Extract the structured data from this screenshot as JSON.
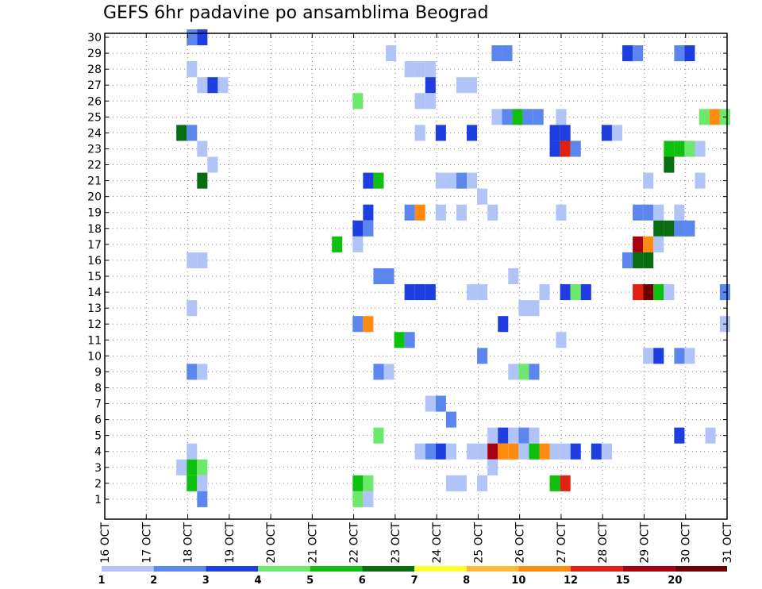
{
  "chart_data": {
    "type": "heatmap",
    "title": "GEFS 6hr padavine po ansamblima Beograd",
    "xlabel": "",
    "ylabel": "",
    "x_ticks": [
      "16 OCT",
      "17 OCT",
      "18 OCT",
      "19 OCT",
      "20 OCT",
      "21 OCT",
      "22 OCT",
      "23 OCT",
      "24 OCT",
      "25 OCT",
      "26 OCT",
      "27 OCT",
      "28 OCT",
      "29 OCT",
      "30 OCT",
      "31 OCT"
    ],
    "y_ticks": [
      "1",
      "2",
      "3",
      "4",
      "5",
      "6",
      "7",
      "8",
      "9",
      "10",
      "11",
      "12",
      "13",
      "14",
      "15",
      "16",
      "17",
      "18",
      "19",
      "20",
      "21",
      "22",
      "23",
      "24",
      "25",
      "26",
      "27",
      "28",
      "29",
      "30"
    ],
    "xlim": [
      0,
      15
    ],
    "ylim": [
      0,
      30
    ],
    "grid": true,
    "legend": {
      "placement": "bottom",
      "labels": [
        "1",
        "2",
        "3",
        "4",
        "5",
        "6",
        "7",
        "8",
        "10",
        "12",
        "15",
        "20"
      ],
      "colors": [
        "#b0c4f8",
        "#5b86ee",
        "#1e3ee0",
        "#6ce86c",
        "#10c010",
        "#086c10",
        "#ffff30",
        "#ffb83a",
        "#ff8a10",
        "#e02010",
        "#a80010",
        "#700000"
      ]
    },
    "cells": [
      {
        "x": 2.1,
        "m": 30,
        "c": 1
      },
      {
        "x": 2.35,
        "m": 30,
        "c": 2
      },
      {
        "x": 6.9,
        "m": 29,
        "c": 0
      },
      {
        "x": 9.45,
        "m": 29,
        "c": 1
      },
      {
        "x": 9.7,
        "m": 29,
        "c": 1
      },
      {
        "x": 12.6,
        "m": 29,
        "c": 2
      },
      {
        "x": 12.85,
        "m": 29,
        "c": 1
      },
      {
        "x": 13.85,
        "m": 29,
        "c": 1
      },
      {
        "x": 14.1,
        "m": 29,
        "c": 2
      },
      {
        "x": 2.1,
        "m": 28,
        "c": 0
      },
      {
        "x": 7.35,
        "m": 28,
        "c": 0
      },
      {
        "x": 7.6,
        "m": 28,
        "c": 0
      },
      {
        "x": 7.85,
        "m": 28,
        "c": 0
      },
      {
        "x": 2.35,
        "m": 27,
        "c": 0
      },
      {
        "x": 2.6,
        "m": 27,
        "c": 2
      },
      {
        "x": 2.85,
        "m": 27,
        "c": 0
      },
      {
        "x": 7.85,
        "m": 27,
        "c": 2
      },
      {
        "x": 8.6,
        "m": 27,
        "c": 0
      },
      {
        "x": 8.85,
        "m": 27,
        "c": 0
      },
      {
        "x": 6.1,
        "m": 26,
        "c": 3
      },
      {
        "x": 7.6,
        "m": 26,
        "c": 0
      },
      {
        "x": 7.85,
        "m": 26,
        "c": 0
      },
      {
        "x": 9.45,
        "m": 25,
        "c": 0
      },
      {
        "x": 9.7,
        "m": 25,
        "c": 1
      },
      {
        "x": 9.95,
        "m": 25,
        "c": 4
      },
      {
        "x": 10.2,
        "m": 25,
        "c": 1
      },
      {
        "x": 10.45,
        "m": 25,
        "c": 1
      },
      {
        "x": 11.0,
        "m": 25,
        "c": 0
      },
      {
        "x": 14.45,
        "m": 25,
        "c": 3
      },
      {
        "x": 14.7,
        "m": 25,
        "c": 8
      },
      {
        "x": 14.95,
        "m": 25,
        "c": 3
      },
      {
        "x": 1.85,
        "m": 24,
        "c": 5
      },
      {
        "x": 2.1,
        "m": 24,
        "c": 1
      },
      {
        "x": 7.6,
        "m": 24,
        "c": 0
      },
      {
        "x": 8.1,
        "m": 24,
        "c": 2
      },
      {
        "x": 8.85,
        "m": 24,
        "c": 2
      },
      {
        "x": 10.85,
        "m": 24,
        "c": 2
      },
      {
        "x": 11.1,
        "m": 24,
        "c": 2
      },
      {
        "x": 12.1,
        "m": 24,
        "c": 2
      },
      {
        "x": 12.35,
        "m": 24,
        "c": 0
      },
      {
        "x": 2.35,
        "m": 23,
        "c": 0
      },
      {
        "x": 10.85,
        "m": 23,
        "c": 2
      },
      {
        "x": 11.1,
        "m": 23,
        "c": 9
      },
      {
        "x": 11.35,
        "m": 23,
        "c": 1
      },
      {
        "x": 13.6,
        "m": 23,
        "c": 4
      },
      {
        "x": 13.85,
        "m": 23,
        "c": 4
      },
      {
        "x": 14.1,
        "m": 23,
        "c": 3
      },
      {
        "x": 14.35,
        "m": 23,
        "c": 0
      },
      {
        "x": 2.6,
        "m": 22,
        "c": 0
      },
      {
        "x": 13.6,
        "m": 22,
        "c": 5
      },
      {
        "x": 2.35,
        "m": 21,
        "c": 5
      },
      {
        "x": 6.35,
        "m": 21,
        "c": 2
      },
      {
        "x": 6.6,
        "m": 21,
        "c": 4
      },
      {
        "x": 8.1,
        "m": 21,
        "c": 0
      },
      {
        "x": 8.35,
        "m": 21,
        "c": 0
      },
      {
        "x": 8.6,
        "m": 21,
        "c": 1
      },
      {
        "x": 8.85,
        "m": 21,
        "c": 0
      },
      {
        "x": 13.1,
        "m": 21,
        "c": 0
      },
      {
        "x": 14.35,
        "m": 21,
        "c": 0
      },
      {
        "x": 9.1,
        "m": 20,
        "c": 0
      },
      {
        "x": 6.35,
        "m": 19,
        "c": 2
      },
      {
        "x": 7.35,
        "m": 19,
        "c": 1
      },
      {
        "x": 7.6,
        "m": 19,
        "c": 8
      },
      {
        "x": 8.1,
        "m": 19,
        "c": 0
      },
      {
        "x": 8.6,
        "m": 19,
        "c": 0
      },
      {
        "x": 9.35,
        "m": 19,
        "c": 0
      },
      {
        "x": 11.0,
        "m": 19,
        "c": 0
      },
      {
        "x": 12.85,
        "m": 19,
        "c": 1
      },
      {
        "x": 13.1,
        "m": 19,
        "c": 1
      },
      {
        "x": 13.35,
        "m": 19,
        "c": 0
      },
      {
        "x": 13.85,
        "m": 19,
        "c": 0
      },
      {
        "x": 6.1,
        "m": 18,
        "c": 2
      },
      {
        "x": 6.35,
        "m": 18,
        "c": 1
      },
      {
        "x": 13.35,
        "m": 18,
        "c": 5
      },
      {
        "x": 13.6,
        "m": 18,
        "c": 5
      },
      {
        "x": 13.85,
        "m": 18,
        "c": 1
      },
      {
        "x": 14.1,
        "m": 18,
        "c": 1
      },
      {
        "x": 5.6,
        "m": 17,
        "c": 4
      },
      {
        "x": 6.1,
        "m": 17,
        "c": 0
      },
      {
        "x": 12.85,
        "m": 17,
        "c": 10
      },
      {
        "x": 13.1,
        "m": 17,
        "c": 8
      },
      {
        "x": 13.35,
        "m": 17,
        "c": 0
      },
      {
        "x": 2.1,
        "m": 16,
        "c": 0
      },
      {
        "x": 2.35,
        "m": 16,
        "c": 0
      },
      {
        "x": 12.6,
        "m": 16,
        "c": 1
      },
      {
        "x": 12.85,
        "m": 16,
        "c": 5
      },
      {
        "x": 13.1,
        "m": 16,
        "c": 5
      },
      {
        "x": 6.6,
        "m": 15,
        "c": 1
      },
      {
        "x": 6.85,
        "m": 15,
        "c": 1
      },
      {
        "x": 9.85,
        "m": 15,
        "c": 0
      },
      {
        "x": 7.35,
        "m": 14,
        "c": 2
      },
      {
        "x": 7.6,
        "m": 14,
        "c": 2
      },
      {
        "x": 7.85,
        "m": 14,
        "c": 2
      },
      {
        "x": 8.85,
        "m": 14,
        "c": 0
      },
      {
        "x": 9.1,
        "m": 14,
        "c": 0
      },
      {
        "x": 10.6,
        "m": 14,
        "c": 0
      },
      {
        "x": 11.1,
        "m": 14,
        "c": 2
      },
      {
        "x": 11.35,
        "m": 14,
        "c": 3
      },
      {
        "x": 11.6,
        "m": 14,
        "c": 2
      },
      {
        "x": 12.85,
        "m": 14,
        "c": 9
      },
      {
        "x": 13.1,
        "m": 14,
        "c": 11
      },
      {
        "x": 13.35,
        "m": 14,
        "c": 4
      },
      {
        "x": 13.6,
        "m": 14,
        "c": 0
      },
      {
        "x": 14.95,
        "m": 14,
        "c": 1
      },
      {
        "x": 2.1,
        "m": 13,
        "c": 0
      },
      {
        "x": 10.1,
        "m": 13,
        "c": 0
      },
      {
        "x": 10.35,
        "m": 13,
        "c": 0
      },
      {
        "x": 6.1,
        "m": 12,
        "c": 1
      },
      {
        "x": 6.35,
        "m": 12,
        "c": 8
      },
      {
        "x": 9.6,
        "m": 12,
        "c": 2
      },
      {
        "x": 14.95,
        "m": 12,
        "c": 0
      },
      {
        "x": 7.1,
        "m": 11,
        "c": 4
      },
      {
        "x": 7.35,
        "m": 11,
        "c": 1
      },
      {
        "x": 11.0,
        "m": 11,
        "c": 0
      },
      {
        "x": 9.1,
        "m": 10,
        "c": 1
      },
      {
        "x": 13.1,
        "m": 10,
        "c": 0
      },
      {
        "x": 13.35,
        "m": 10,
        "c": 2
      },
      {
        "x": 13.85,
        "m": 10,
        "c": 1
      },
      {
        "x": 14.1,
        "m": 10,
        "c": 0
      },
      {
        "x": 2.1,
        "m": 9,
        "c": 1
      },
      {
        "x": 2.35,
        "m": 9,
        "c": 0
      },
      {
        "x": 6.6,
        "m": 9,
        "c": 1
      },
      {
        "x": 6.85,
        "m": 9,
        "c": 0
      },
      {
        "x": 9.85,
        "m": 9,
        "c": 0
      },
      {
        "x": 10.1,
        "m": 9,
        "c": 3
      },
      {
        "x": 10.35,
        "m": 9,
        "c": 1
      },
      {
        "x": 7.85,
        "m": 7,
        "c": 0
      },
      {
        "x": 8.1,
        "m": 7,
        "c": 1
      },
      {
        "x": 8.35,
        "m": 6,
        "c": 1
      },
      {
        "x": 6.6,
        "m": 5,
        "c": 3
      },
      {
        "x": 9.35,
        "m": 5,
        "c": 0
      },
      {
        "x": 9.6,
        "m": 5,
        "c": 2
      },
      {
        "x": 9.85,
        "m": 5,
        "c": 0
      },
      {
        "x": 10.1,
        "m": 5,
        "c": 1
      },
      {
        "x": 10.35,
        "m": 5,
        "c": 0
      },
      {
        "x": 13.85,
        "m": 5,
        "c": 2
      },
      {
        "x": 14.6,
        "m": 5,
        "c": 0
      },
      {
        "x": 2.1,
        "m": 4,
        "c": 0
      },
      {
        "x": 7.6,
        "m": 4,
        "c": 0
      },
      {
        "x": 7.85,
        "m": 4,
        "c": 1
      },
      {
        "x": 8.1,
        "m": 4,
        "c": 2
      },
      {
        "x": 8.35,
        "m": 4,
        "c": 0
      },
      {
        "x": 8.85,
        "m": 4,
        "c": 0
      },
      {
        "x": 9.1,
        "m": 4,
        "c": 0
      },
      {
        "x": 9.35,
        "m": 4,
        "c": 10
      },
      {
        "x": 9.6,
        "m": 4,
        "c": 8
      },
      {
        "x": 9.85,
        "m": 4,
        "c": 8
      },
      {
        "x": 10.1,
        "m": 4,
        "c": 0
      },
      {
        "x": 10.35,
        "m": 4,
        "c": 4
      },
      {
        "x": 10.6,
        "m": 4,
        "c": 8
      },
      {
        "x": 10.85,
        "m": 4,
        "c": 0
      },
      {
        "x": 11.1,
        "m": 4,
        "c": 0
      },
      {
        "x": 11.35,
        "m": 4,
        "c": 2
      },
      {
        "x": 11.85,
        "m": 4,
        "c": 2
      },
      {
        "x": 12.1,
        "m": 4,
        "c": 0
      },
      {
        "x": 1.85,
        "m": 3,
        "c": 0
      },
      {
        "x": 2.1,
        "m": 3,
        "c": 4
      },
      {
        "x": 2.35,
        "m": 3,
        "c": 3
      },
      {
        "x": 9.35,
        "m": 3,
        "c": 0
      },
      {
        "x": 2.1,
        "m": 2,
        "c": 4
      },
      {
        "x": 2.35,
        "m": 2,
        "c": 0
      },
      {
        "x": 6.1,
        "m": 2,
        "c": 4
      },
      {
        "x": 6.35,
        "m": 2,
        "c": 3
      },
      {
        "x": 8.35,
        "m": 2,
        "c": 0
      },
      {
        "x": 8.6,
        "m": 2,
        "c": 0
      },
      {
        "x": 9.1,
        "m": 2,
        "c": 0
      },
      {
        "x": 10.85,
        "m": 2,
        "c": 4
      },
      {
        "x": 11.1,
        "m": 2,
        "c": 9
      },
      {
        "x": 2.35,
        "m": 1,
        "c": 1
      },
      {
        "x": 6.1,
        "m": 1,
        "c": 3
      },
      {
        "x": 6.35,
        "m": 1,
        "c": 0
      }
    ]
  }
}
